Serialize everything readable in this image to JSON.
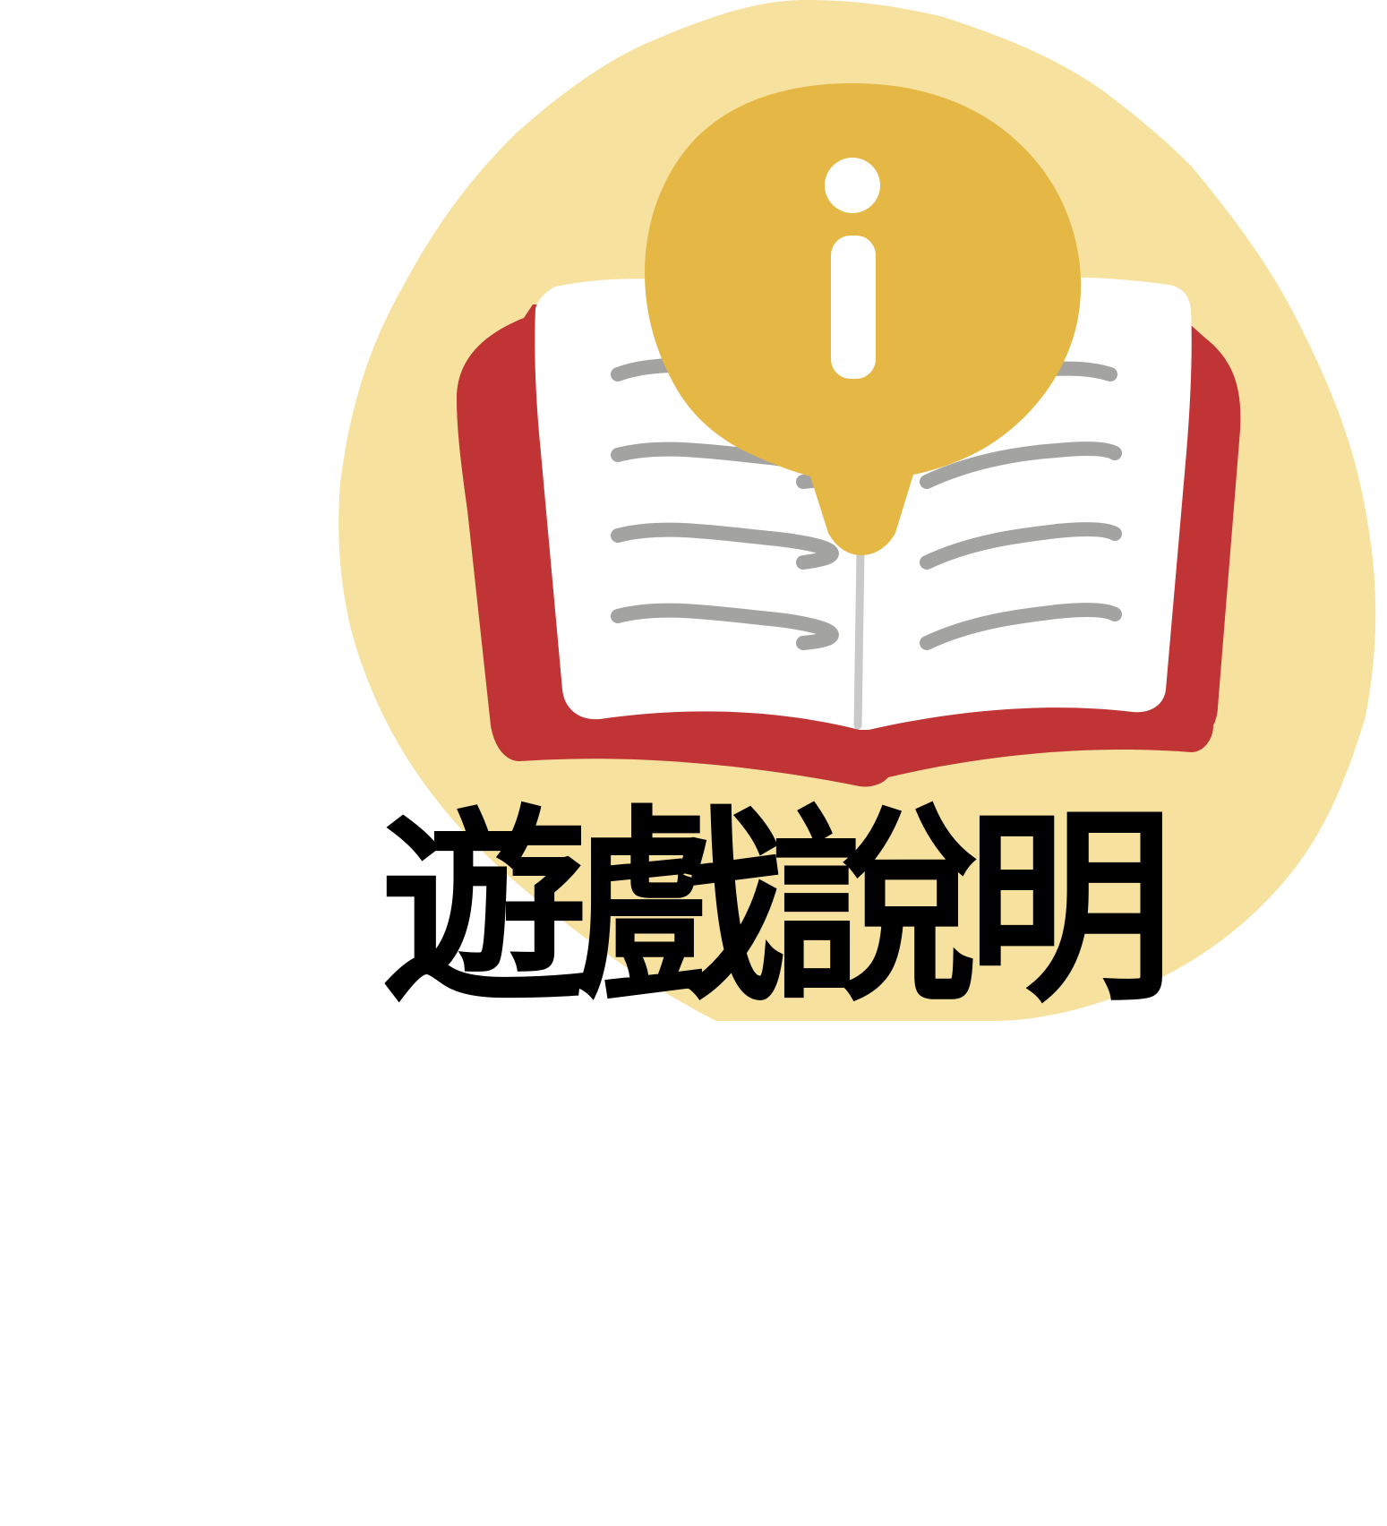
{
  "button": {
    "label": "遊戲說明",
    "icon": "book-info-icon"
  },
  "colors": {
    "blob_background": "#F7E19E",
    "book_cover": "#C13436",
    "book_pages": "#FFFFFF",
    "text_lines": "#A3A3A2",
    "info_bubble": "#E5B745",
    "info_glyph": "#FFFFFF",
    "label_text": "#000000"
  }
}
